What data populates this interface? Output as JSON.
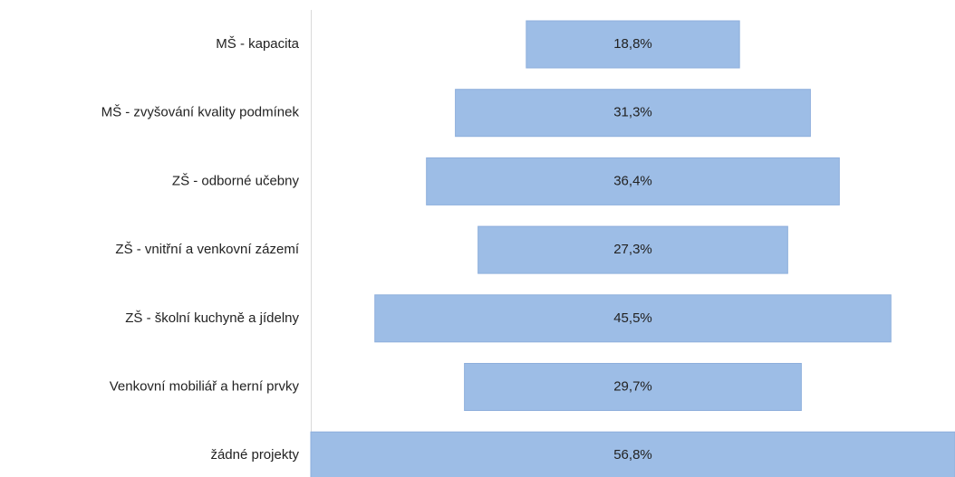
{
  "chart_data": {
    "type": "funnel",
    "categories": [
      "MŠ - kapacita",
      "MŠ - zvyšování kvality podmínek",
      "ZŠ - odborné učebny",
      "ZŠ - vnitřní a venkovní zázemí",
      "ZŠ - školní kuchyně a jídelny",
      "Venkovní mobiliář a herní prvky",
      "žádné projekty"
    ],
    "values": [
      18.8,
      31.3,
      36.4,
      27.3,
      45.5,
      29.7,
      56.8
    ],
    "value_labels": [
      "18,8%",
      "31,3%",
      "36,4%",
      "27,3%",
      "45,5%",
      "29,7%",
      "56,8%"
    ],
    "color": "#9dbde6"
  }
}
